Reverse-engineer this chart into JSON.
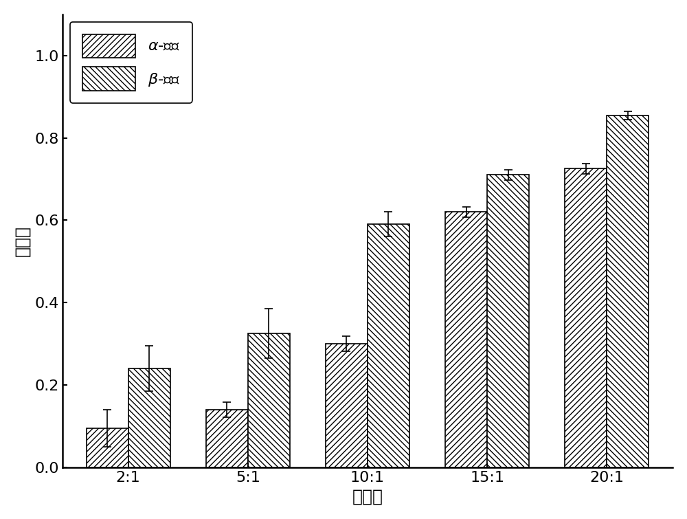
{
  "categories": [
    "2:1",
    "5:1",
    "10:1",
    "15:1",
    "20:1"
  ],
  "alpha_values": [
    0.095,
    0.14,
    0.3,
    0.62,
    0.725
  ],
  "alpha_errors": [
    0.045,
    0.018,
    0.018,
    0.012,
    0.012
  ],
  "beta_values": [
    0.24,
    0.325,
    0.59,
    0.71,
    0.855
  ],
  "beta_errors": [
    0.055,
    0.06,
    0.03,
    0.012,
    0.01
  ],
  "xlabel": "物料比",
  "ylabel": "降解率",
  "alpha_label": "$\\alpha$-硫丹",
  "beta_label": "$\\beta$-硫丹",
  "ylim": [
    0.0,
    1.1
  ],
  "yticks": [
    0.0,
    0.2,
    0.4,
    0.6,
    0.8,
    1.0
  ],
  "bar_width": 0.35,
  "alpha_hatch": "////",
  "beta_hatch": "\\\\\\\\",
  "bar_color": "white",
  "edge_color": "black",
  "background_color": "white",
  "label_fontsize": 18,
  "tick_fontsize": 16,
  "legend_fontsize": 16
}
